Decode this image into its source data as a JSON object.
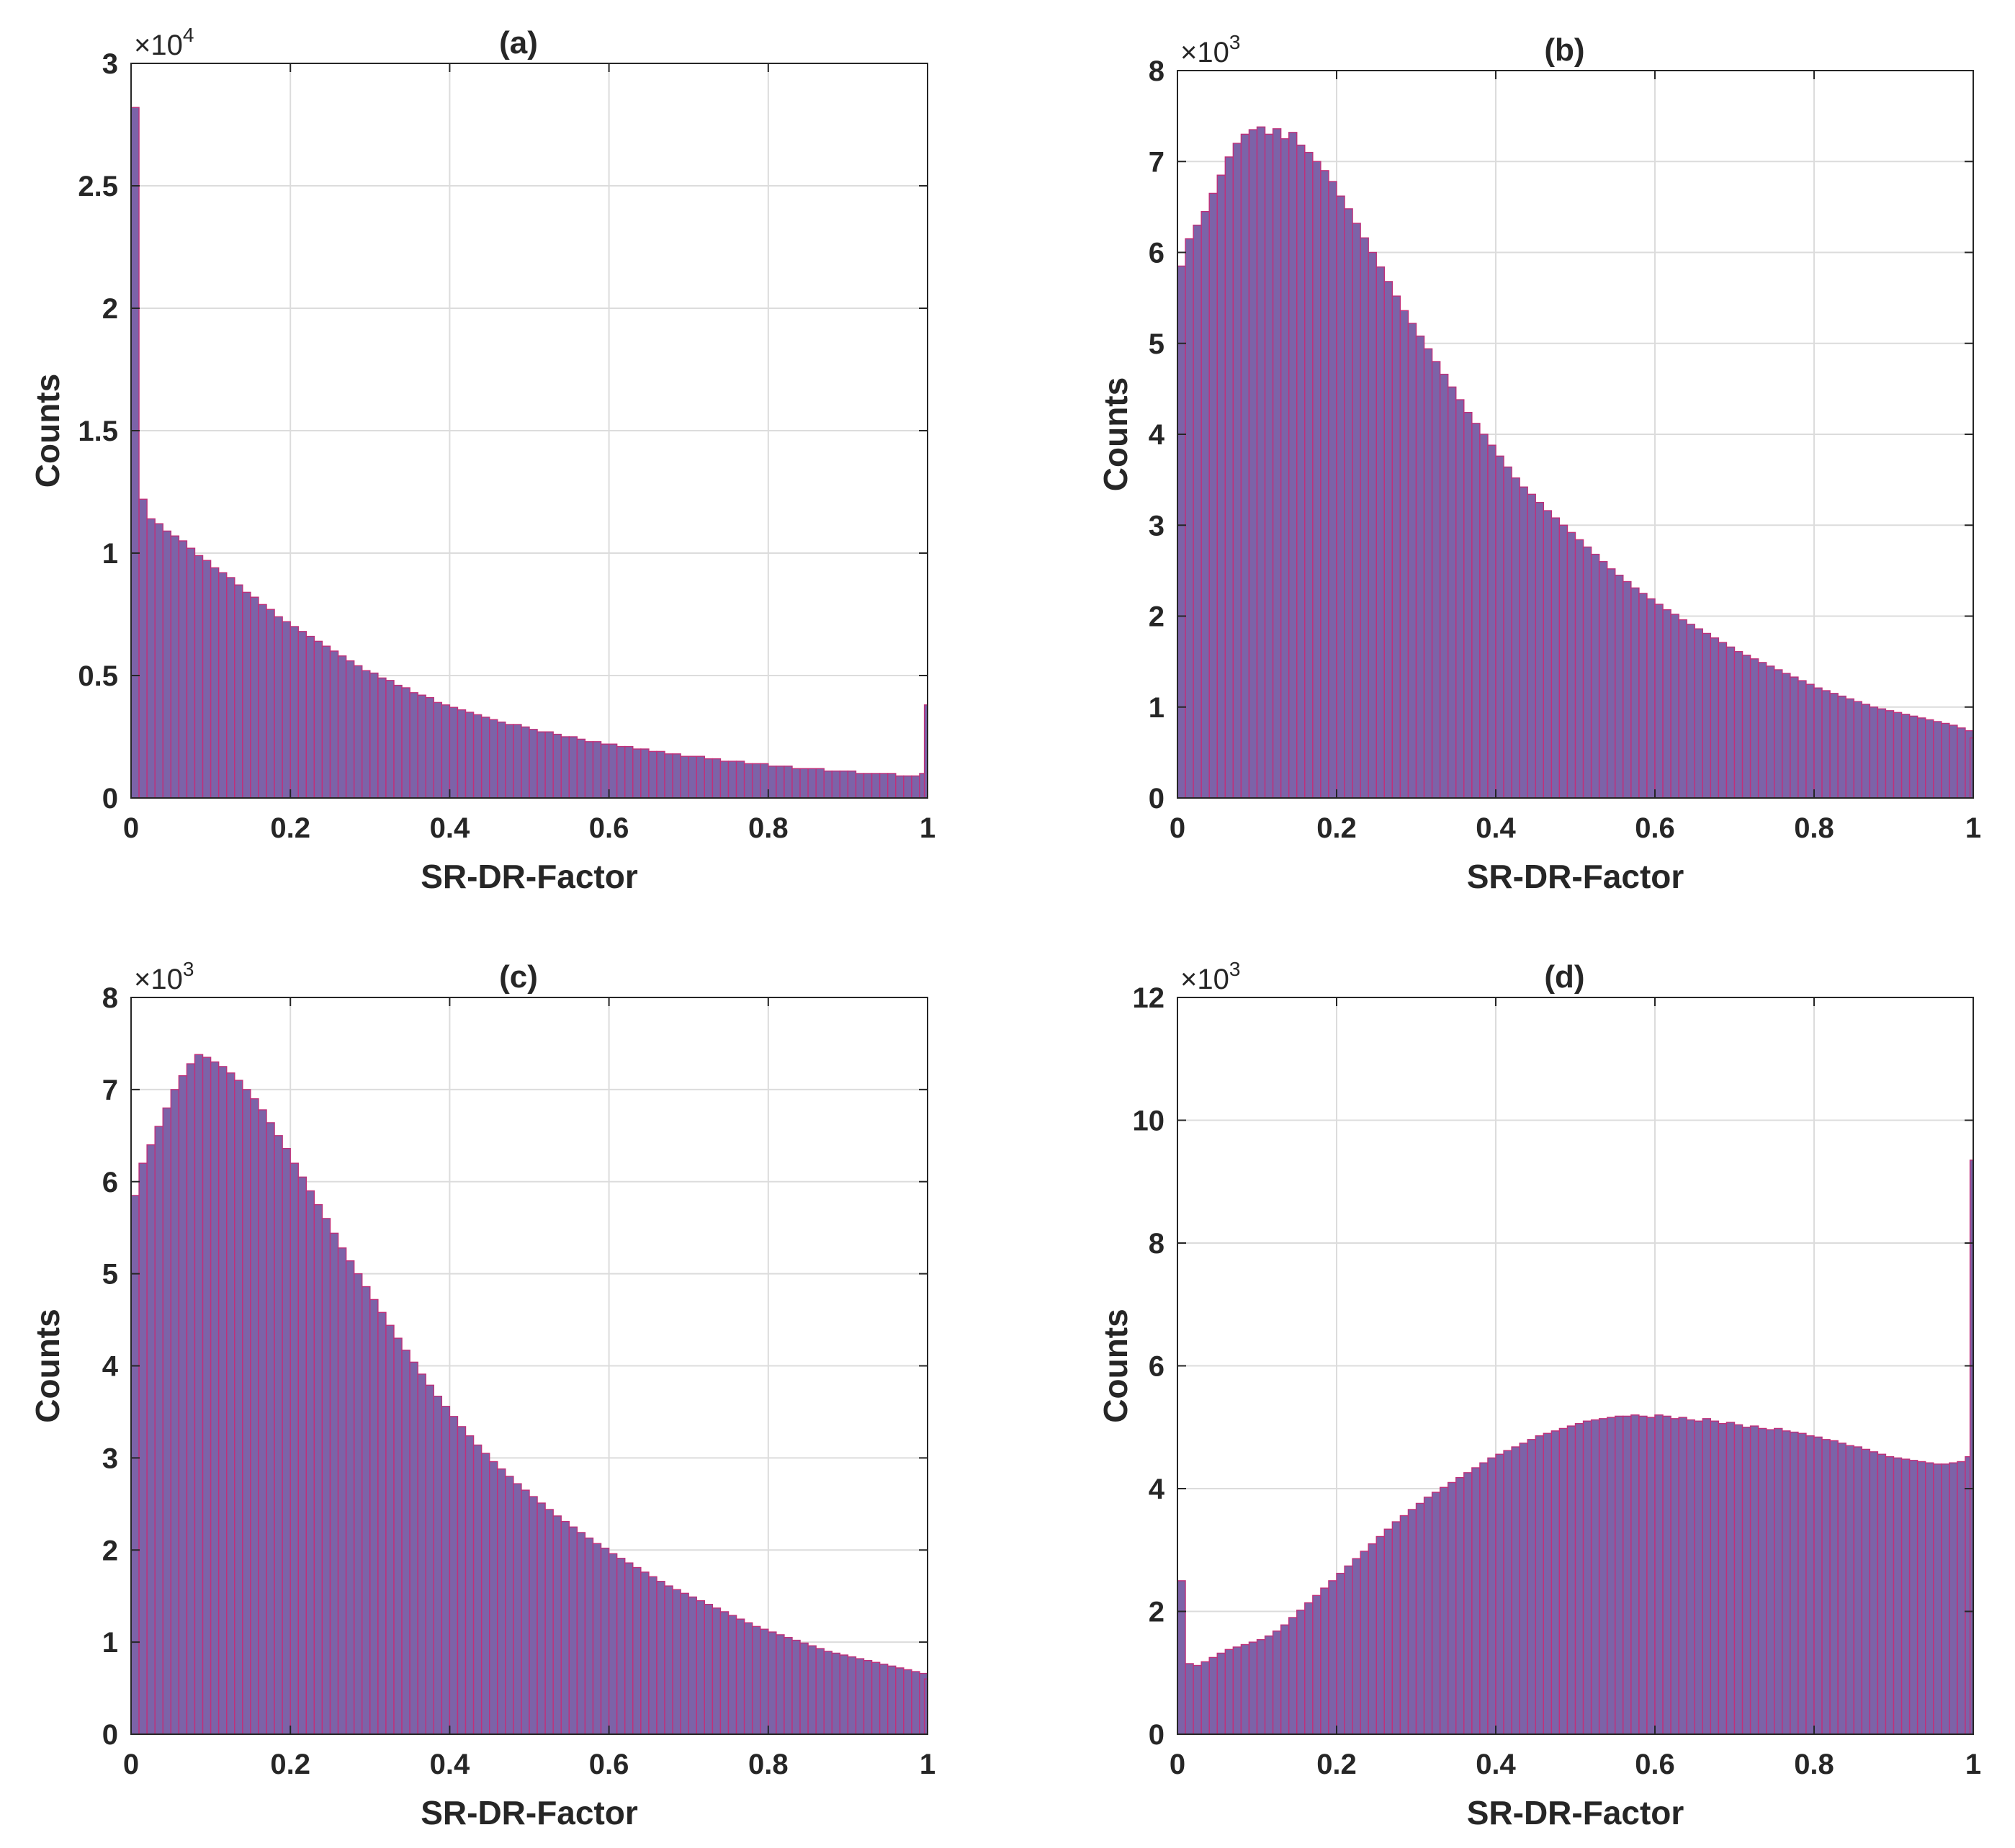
{
  "colors": {
    "bar_fill": "#7c63a8",
    "bar_edge": "#c0307a",
    "grid": "#dcdcdc",
    "axis": "#262626"
  },
  "chart_data": [
    {
      "type": "bar",
      "title": "(a)",
      "xlabel": "SR-DR-Factor",
      "ylabel": "Counts",
      "y_multiplier": "×10",
      "y_exponent": "4",
      "xlim": [
        0,
        1
      ],
      "ylim": [
        0,
        3
      ],
      "xticks": [
        "0",
        "0.2",
        "0.4",
        "0.6",
        "0.8",
        "1"
      ],
      "yticks": [
        "0",
        "0.5",
        "1",
        "1.5",
        "2",
        "2.5",
        "3"
      ],
      "grid": true,
      "bin_width": 0.01,
      "values": [
        2.82,
        1.22,
        1.14,
        1.12,
        1.09,
        1.07,
        1.05,
        1.02,
        0.99,
        0.97,
        0.94,
        0.92,
        0.9,
        0.87,
        0.84,
        0.82,
        0.79,
        0.77,
        0.74,
        0.72,
        0.7,
        0.68,
        0.66,
        0.64,
        0.62,
        0.6,
        0.58,
        0.56,
        0.54,
        0.52,
        0.51,
        0.49,
        0.48,
        0.46,
        0.45,
        0.43,
        0.42,
        0.41,
        0.39,
        0.38,
        0.37,
        0.36,
        0.35,
        0.34,
        0.33,
        0.32,
        0.31,
        0.3,
        0.3,
        0.29,
        0.28,
        0.27,
        0.27,
        0.26,
        0.25,
        0.25,
        0.24,
        0.23,
        0.23,
        0.22,
        0.22,
        0.21,
        0.21,
        0.2,
        0.2,
        0.19,
        0.19,
        0.18,
        0.18,
        0.17,
        0.17,
        0.17,
        0.16,
        0.16,
        0.15,
        0.15,
        0.15,
        0.14,
        0.14,
        0.14,
        0.13,
        0.13,
        0.13,
        0.12,
        0.12,
        0.12,
        0.12,
        0.11,
        0.11,
        0.11,
        0.11,
        0.1,
        0.1,
        0.1,
        0.1,
        0.1,
        0.09,
        0.09,
        0.09,
        0.1,
        0.38
      ]
    },
    {
      "type": "bar",
      "title": "(b)",
      "xlabel": "SR-DR-Factor",
      "ylabel": "Counts",
      "y_multiplier": "×10",
      "y_exponent": "3",
      "xlim": [
        0,
        1
      ],
      "ylim": [
        0,
        8
      ],
      "xticks": [
        "0",
        "0.2",
        "0.4",
        "0.6",
        "0.8",
        "1"
      ],
      "yticks": [
        "0",
        "1",
        "2",
        "3",
        "4",
        "5",
        "6",
        "7",
        "8"
      ],
      "grid": true,
      "bin_width": 0.01,
      "values": [
        5.85,
        6.15,
        6.3,
        6.45,
        6.65,
        6.85,
        7.05,
        7.2,
        7.3,
        7.35,
        7.38,
        7.3,
        7.36,
        7.25,
        7.32,
        7.18,
        7.1,
        7.0,
        6.9,
        6.78,
        6.62,
        6.48,
        6.32,
        6.16,
        6.0,
        5.84,
        5.68,
        5.52,
        5.36,
        5.22,
        5.08,
        4.94,
        4.8,
        4.66,
        4.52,
        4.38,
        4.24,
        4.12,
        4.0,
        3.88,
        3.76,
        3.64,
        3.52,
        3.42,
        3.34,
        3.25,
        3.16,
        3.08,
        3.0,
        2.92,
        2.84,
        2.76,
        2.68,
        2.6,
        2.52,
        2.45,
        2.38,
        2.31,
        2.25,
        2.19,
        2.13,
        2.07,
        2.02,
        1.96,
        1.91,
        1.86,
        1.81,
        1.76,
        1.71,
        1.66,
        1.61,
        1.57,
        1.53,
        1.49,
        1.45,
        1.41,
        1.37,
        1.33,
        1.29,
        1.25,
        1.21,
        1.18,
        1.15,
        1.12,
        1.09,
        1.06,
        1.03,
        1.0,
        0.98,
        0.96,
        0.94,
        0.92,
        0.9,
        0.88,
        0.86,
        0.84,
        0.82,
        0.8,
        0.77,
        0.74,
        0.66
      ]
    },
    {
      "type": "bar",
      "title": "(c)",
      "xlabel": "SR-DR-Factor",
      "ylabel": "Counts",
      "y_multiplier": "×10",
      "y_exponent": "3",
      "xlim": [
        0,
        1
      ],
      "ylim": [
        0,
        8
      ],
      "xticks": [
        "0",
        "0.2",
        "0.4",
        "0.6",
        "0.8",
        "1"
      ],
      "yticks": [
        "0",
        "1",
        "2",
        "3",
        "4",
        "5",
        "6",
        "7",
        "8"
      ],
      "grid": true,
      "bin_width": 0.01,
      "values": [
        5.85,
        6.2,
        6.4,
        6.6,
        6.8,
        7.0,
        7.15,
        7.28,
        7.38,
        7.35,
        7.3,
        7.25,
        7.18,
        7.1,
        7.0,
        6.9,
        6.78,
        6.64,
        6.5,
        6.36,
        6.2,
        6.05,
        5.9,
        5.75,
        5.6,
        5.44,
        5.28,
        5.14,
        5.0,
        4.86,
        4.72,
        4.58,
        4.44,
        4.3,
        4.17,
        4.04,
        3.91,
        3.79,
        3.67,
        3.56,
        3.45,
        3.34,
        3.24,
        3.14,
        3.05,
        2.96,
        2.88,
        2.8,
        2.72,
        2.65,
        2.58,
        2.51,
        2.44,
        2.37,
        2.31,
        2.25,
        2.19,
        2.13,
        2.07,
        2.02,
        1.96,
        1.91,
        1.86,
        1.81,
        1.76,
        1.71,
        1.66,
        1.61,
        1.57,
        1.53,
        1.49,
        1.45,
        1.41,
        1.37,
        1.33,
        1.29,
        1.25,
        1.21,
        1.17,
        1.14,
        1.11,
        1.08,
        1.05,
        1.02,
        0.99,
        0.96,
        0.93,
        0.9,
        0.88,
        0.86,
        0.84,
        0.82,
        0.8,
        0.78,
        0.76,
        0.74,
        0.72,
        0.7,
        0.68,
        0.66,
        0.6
      ]
    },
    {
      "type": "bar",
      "title": "(d)",
      "xlabel": "SR-DR-Factor",
      "ylabel": "Counts",
      "y_multiplier": "×10",
      "y_exponent": "3",
      "xlim": [
        0,
        1
      ],
      "ylim": [
        0,
        12
      ],
      "xticks": [
        "0",
        "0.2",
        "0.4",
        "0.6",
        "0.8",
        "1"
      ],
      "yticks": [
        "0",
        "2",
        "4",
        "6",
        "8",
        "10",
        "12"
      ],
      "grid": true,
      "bin_width": 0.01,
      "values": [
        2.5,
        1.15,
        1.12,
        1.18,
        1.25,
        1.32,
        1.38,
        1.42,
        1.46,
        1.5,
        1.54,
        1.6,
        1.68,
        1.78,
        1.9,
        2.02,
        2.14,
        2.26,
        2.38,
        2.5,
        2.62,
        2.74,
        2.86,
        2.98,
        3.1,
        3.22,
        3.34,
        3.46,
        3.56,
        3.66,
        3.76,
        3.86,
        3.94,
        4.02,
        4.1,
        4.18,
        4.26,
        4.34,
        4.42,
        4.5,
        4.56,
        4.62,
        4.68,
        4.74,
        4.8,
        4.86,
        4.9,
        4.94,
        4.98,
        5.02,
        5.06,
        5.1,
        5.12,
        5.14,
        5.16,
        5.18,
        5.18,
        5.2,
        5.18,
        5.16,
        5.2,
        5.18,
        5.14,
        5.16,
        5.12,
        5.1,
        5.14,
        5.1,
        5.06,
        5.08,
        5.04,
        5.0,
        5.02,
        4.98,
        4.96,
        4.98,
        4.94,
        4.92,
        4.9,
        4.86,
        4.84,
        4.8,
        4.78,
        4.74,
        4.7,
        4.68,
        4.64,
        4.6,
        4.56,
        4.52,
        4.5,
        4.48,
        4.46,
        4.44,
        4.42,
        4.4,
        4.4,
        4.42,
        4.44,
        4.52,
        9.35
      ]
    }
  ]
}
